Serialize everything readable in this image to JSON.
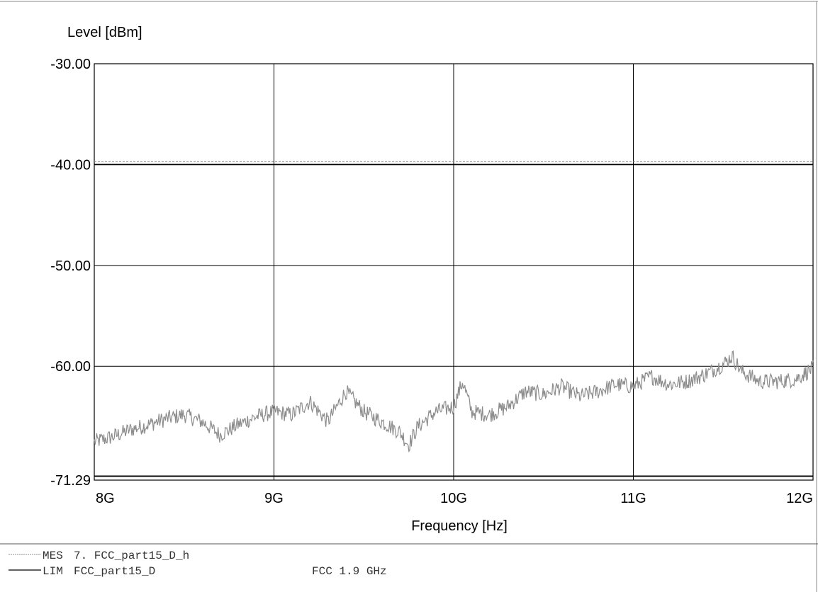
{
  "chart_data": {
    "type": "line",
    "ylabel": "Level [dBm]",
    "xlabel": "Frequency [Hz]",
    "ylim": [
      -71.29,
      -30.0
    ],
    "xlim": [
      8,
      12
    ],
    "x_unit": "GHz",
    "yticks": [
      -30.0,
      -40.0,
      -50.0,
      -60.0,
      -71.29
    ],
    "ytick_labels": [
      "-30.00",
      "-40.00",
      "-50.00",
      "-60.00",
      "-71.29"
    ],
    "xticks": [
      8,
      9,
      10,
      11,
      12
    ],
    "xtick_labels": [
      "8G",
      "9G",
      "10G",
      "11G",
      "12G"
    ],
    "grid": true,
    "series": [
      {
        "name": "MES",
        "color": "#8c8c8c",
        "x": [
          8.0,
          8.1,
          8.2,
          8.3,
          8.4,
          8.5,
          8.6,
          8.7,
          8.8,
          8.9,
          9.0,
          9.1,
          9.2,
          9.3,
          9.4,
          9.5,
          9.6,
          9.7,
          9.75,
          9.8,
          9.9,
          10.0,
          10.05,
          10.1,
          10.2,
          10.3,
          10.4,
          10.5,
          10.6,
          10.7,
          10.8,
          10.9,
          11.0,
          11.1,
          11.2,
          11.3,
          11.4,
          11.5,
          11.55,
          11.6,
          11.7,
          11.8,
          11.9,
          12.0
        ],
        "y": [
          -67.5,
          -67.0,
          -66.3,
          -65.8,
          -65.2,
          -64.8,
          -65.5,
          -66.8,
          -65.8,
          -65.0,
          -64.5,
          -64.8,
          -63.5,
          -65.5,
          -62.5,
          -64.5,
          -65.5,
          -66.5,
          -67.8,
          -66.0,
          -64.5,
          -64.0,
          -61.5,
          -64.5,
          -64.8,
          -64.0,
          -62.5,
          -62.8,
          -62.0,
          -63.0,
          -62.5,
          -61.8,
          -62.0,
          -61.0,
          -61.8,
          -61.5,
          -60.8,
          -59.8,
          -59.0,
          -60.5,
          -61.5,
          -61.5,
          -61.3,
          -60.2
        ]
      },
      {
        "name": "LIM",
        "color": "#000000",
        "limit_levels": [
          -40.0,
          -70.9
        ]
      }
    ],
    "legend": [
      {
        "code": "MES",
        "text": "7. FCC_part15_D_h",
        "extra": ""
      },
      {
        "code": "LIM",
        "text": "FCC_part15_D",
        "extra": "FCC 1.9 GHz"
      }
    ]
  }
}
